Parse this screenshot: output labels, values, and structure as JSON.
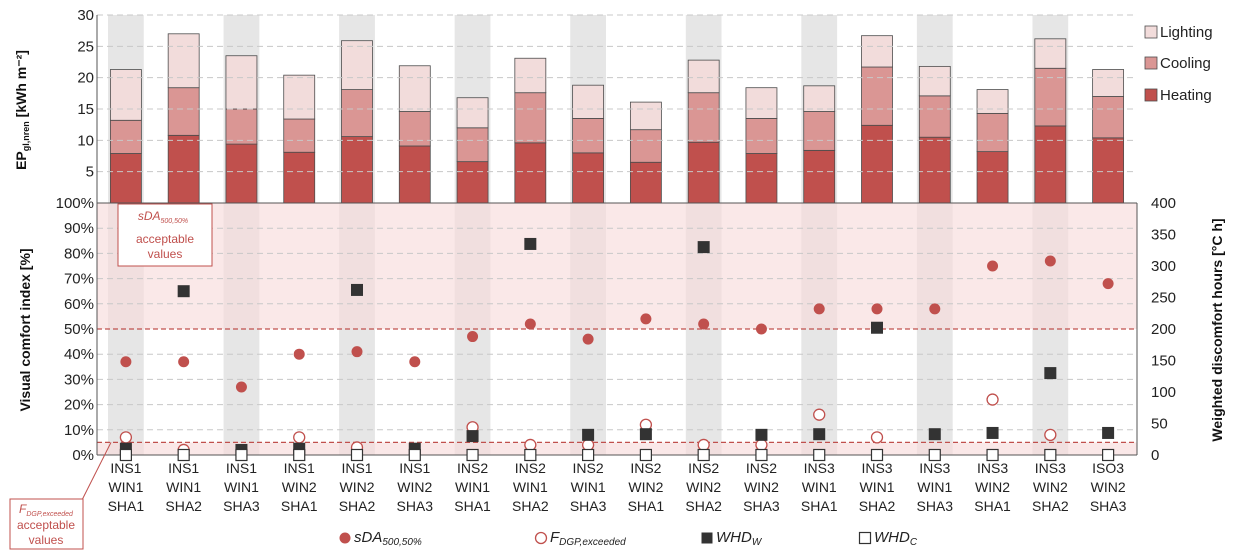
{
  "chart_data": [
    {
      "type": "bar",
      "stacked": true,
      "ylabel_main": "EP",
      "ylabel_sub": "gl,nren",
      "ylabel_unit": " [kWh m⁻²]",
      "ylim": [
        0,
        30
      ],
      "yticks": [
        5,
        10,
        15,
        20,
        25,
        30
      ],
      "categories": [
        "INS1 WIN1 SHA1",
        "INS1 WIN1 SHA2",
        "INS1 WIN1 SHA3",
        "INS1 WIN2 SHA1",
        "INS1 WIN2 SHA2",
        "INS1 WIN2 SHA3",
        "INS2 WIN1 SHA1",
        "INS2 WIN1 SHA2",
        "INS2 WIN1 SHA3",
        "INS2 WIN2 SHA1",
        "INS2 WIN2 SHA2",
        "INS2 WIN2 SHA3",
        "INS3 WIN1 SHA1",
        "INS3 WIN1 SHA2",
        "INS3 WIN1 SHA3",
        "INS3 WIN2 SHA1",
        "INS3 WIN2 SHA2",
        "ISO3 WIN2 SHA3"
      ],
      "series": [
        {
          "name": "Heating",
          "color": "#c0504d",
          "values": [
            7.9,
            10.8,
            9.4,
            8.1,
            10.6,
            9.1,
            6.6,
            9.6,
            8.0,
            6.5,
            9.7,
            7.9,
            8.4,
            12.4,
            10.5,
            8.2,
            12.3,
            10.4
          ]
        },
        {
          "name": "Cooling",
          "color": "#da9694",
          "values": [
            5.3,
            7.6,
            5.6,
            5.3,
            7.5,
            5.5,
            5.4,
            8.0,
            5.5,
            5.2,
            7.9,
            5.6,
            6.2,
            9.3,
            6.6,
            6.1,
            9.2,
            6.6
          ]
        },
        {
          "name": "Lighting",
          "color": "#f2dcdb",
          "values": [
            8.1,
            8.6,
            8.5,
            7.0,
            7.8,
            7.3,
            4.8,
            5.5,
            5.3,
            4.4,
            5.2,
            4.9,
            4.1,
            5.0,
            4.7,
            3.8,
            4.7,
            4.3
          ]
        }
      ]
    },
    {
      "type": "scatter",
      "ylabel_left": "Visual comfort index [%]",
      "ylabel_right": "Weighted discomfort hours [°C h]",
      "ylim_left": [
        0,
        100
      ],
      "ylim_right": [
        0,
        400
      ],
      "yticks_left": [
        "0%",
        "10%",
        "20%",
        "30%",
        "40%",
        "50%",
        "60%",
        "70%",
        "80%",
        "90%",
        "100%"
      ],
      "yticks_right": [
        0,
        50,
        100,
        150,
        200,
        250,
        300,
        350,
        400
      ],
      "x_labels": [
        [
          "INS1",
          "WIN1",
          "SHA1"
        ],
        [
          "INS1",
          "WIN1",
          "SHA2"
        ],
        [
          "INS1",
          "WIN1",
          "SHA3"
        ],
        [
          "INS1",
          "WIN2",
          "SHA1"
        ],
        [
          "INS1",
          "WIN2",
          "SHA2"
        ],
        [
          "INS1",
          "WIN2",
          "SHA3"
        ],
        [
          "INS2",
          "WIN1",
          "SHA1"
        ],
        [
          "INS2",
          "WIN1",
          "SHA2"
        ],
        [
          "INS2",
          "WIN1",
          "SHA3"
        ],
        [
          "INS2",
          "WIN2",
          "SHA1"
        ],
        [
          "INS2",
          "WIN2",
          "SHA2"
        ],
        [
          "INS2",
          "WIN2",
          "SHA3"
        ],
        [
          "INS3",
          "WIN1",
          "SHA1"
        ],
        [
          "INS3",
          "WIN1",
          "SHA2"
        ],
        [
          "INS3",
          "WIN1",
          "SHA3"
        ],
        [
          "INS3",
          "WIN2",
          "SHA1"
        ],
        [
          "INS3",
          "WIN2",
          "SHA2"
        ],
        [
          "ISO3",
          "WIN2",
          "SHA3"
        ]
      ],
      "series": [
        {
          "name": "sDA",
          "sub": "500,50%",
          "axis": "left",
          "marker": "filled-circle",
          "values": [
            37,
            37,
            27,
            40,
            41,
            37,
            47,
            52,
            46,
            54,
            52,
            50,
            58,
            58,
            58,
            75,
            77,
            68
          ]
        },
        {
          "name": "F",
          "sub": "DGP,exceeded",
          "axis": "left",
          "marker": "open-circle",
          "values": [
            7,
            2,
            null,
            7,
            3,
            null,
            11,
            4,
            4,
            12,
            4,
            4,
            16,
            7,
            null,
            22,
            8,
            null
          ]
        },
        {
          "name": "WHD",
          "sub": "W",
          "axis": "right",
          "marker": "filled-square",
          "values": [
            10,
            260,
            8,
            10,
            262,
            10,
            30,
            335,
            32,
            33,
            330,
            32,
            33,
            202,
            33,
            35,
            130,
            35
          ]
        },
        {
          "name": "WHD",
          "sub": "C",
          "axis": "right",
          "marker": "open-square",
          "values": [
            0,
            0,
            0,
            0,
            0,
            0,
            0,
            0,
            0,
            0,
            0,
            0,
            0,
            0,
            0,
            0,
            0,
            0
          ]
        }
      ],
      "threshold_sda": 50,
      "threshold_fdgp": 5,
      "annotation_sda": {
        "main": "sDA",
        "sub": "500,50%",
        "line2": "acceptable",
        "line3": "values"
      },
      "annotation_fdgp": {
        "main": "F",
        "sub": "DGP,exceeded",
        "line2": "acceptable",
        "line3": "values"
      }
    }
  ]
}
